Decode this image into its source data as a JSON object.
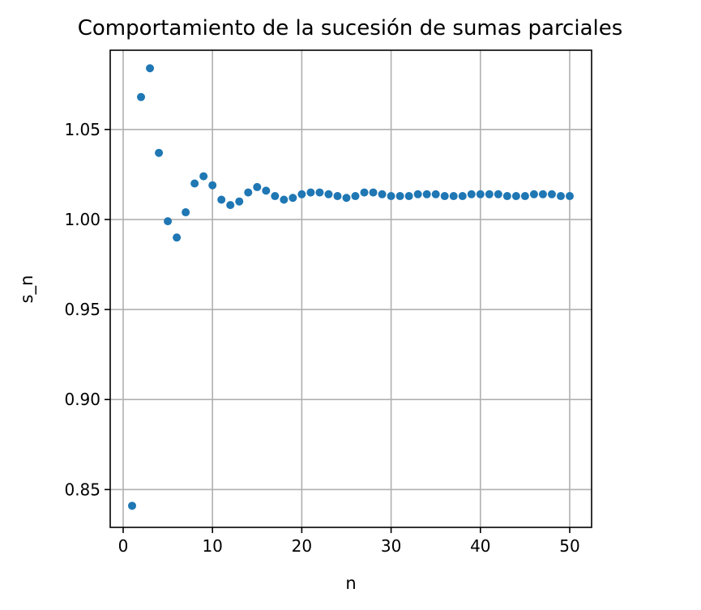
{
  "chart_data": {
    "type": "scatter",
    "title": "Comportamiento de la sucesión de sumas parciales",
    "xlabel": "n",
    "ylabel": "s_n",
    "xlim": [
      -1.45,
      52.45
    ],
    "ylim": [
      0.829,
      1.094
    ],
    "xticks": [
      0,
      10,
      20,
      30,
      40,
      50
    ],
    "xtick_labels": [
      "0",
      "10",
      "20",
      "30",
      "40",
      "50"
    ],
    "yticks": [
      0.85,
      0.9,
      0.95,
      1.0,
      1.05
    ],
    "ytick_labels": [
      "0.85",
      "0.90",
      "0.95",
      "1.00",
      "1.05"
    ],
    "grid": true,
    "marker_color": "#1f77b4",
    "series": [
      {
        "x": [
          1,
          2,
          3,
          4,
          5,
          6,
          7,
          8,
          9,
          10,
          11,
          12,
          13,
          14,
          15,
          16,
          17,
          18,
          19,
          20,
          21,
          22,
          23,
          24,
          25,
          26,
          27,
          28,
          29,
          30,
          31,
          32,
          33,
          34,
          35,
          36,
          37,
          38,
          39,
          40,
          41,
          42,
          43,
          44,
          45,
          46,
          47,
          48,
          49,
          50
        ],
        "y": [
          0.841,
          1.068,
          1.084,
          1.037,
          0.999,
          0.99,
          1.004,
          1.02,
          1.024,
          1.019,
          1.011,
          1.008,
          1.01,
          1.015,
          1.018,
          1.016,
          1.013,
          1.011,
          1.012,
          1.014,
          1.015,
          1.015,
          1.014,
          1.013,
          1.012,
          1.013,
          1.015,
          1.015,
          1.014,
          1.013,
          1.013,
          1.013,
          1.014,
          1.014,
          1.014,
          1.013,
          1.013,
          1.013,
          1.014,
          1.014,
          1.014,
          1.014,
          1.013,
          1.013,
          1.013,
          1.014,
          1.014,
          1.014,
          1.013,
          1.013
        ]
      }
    ]
  }
}
